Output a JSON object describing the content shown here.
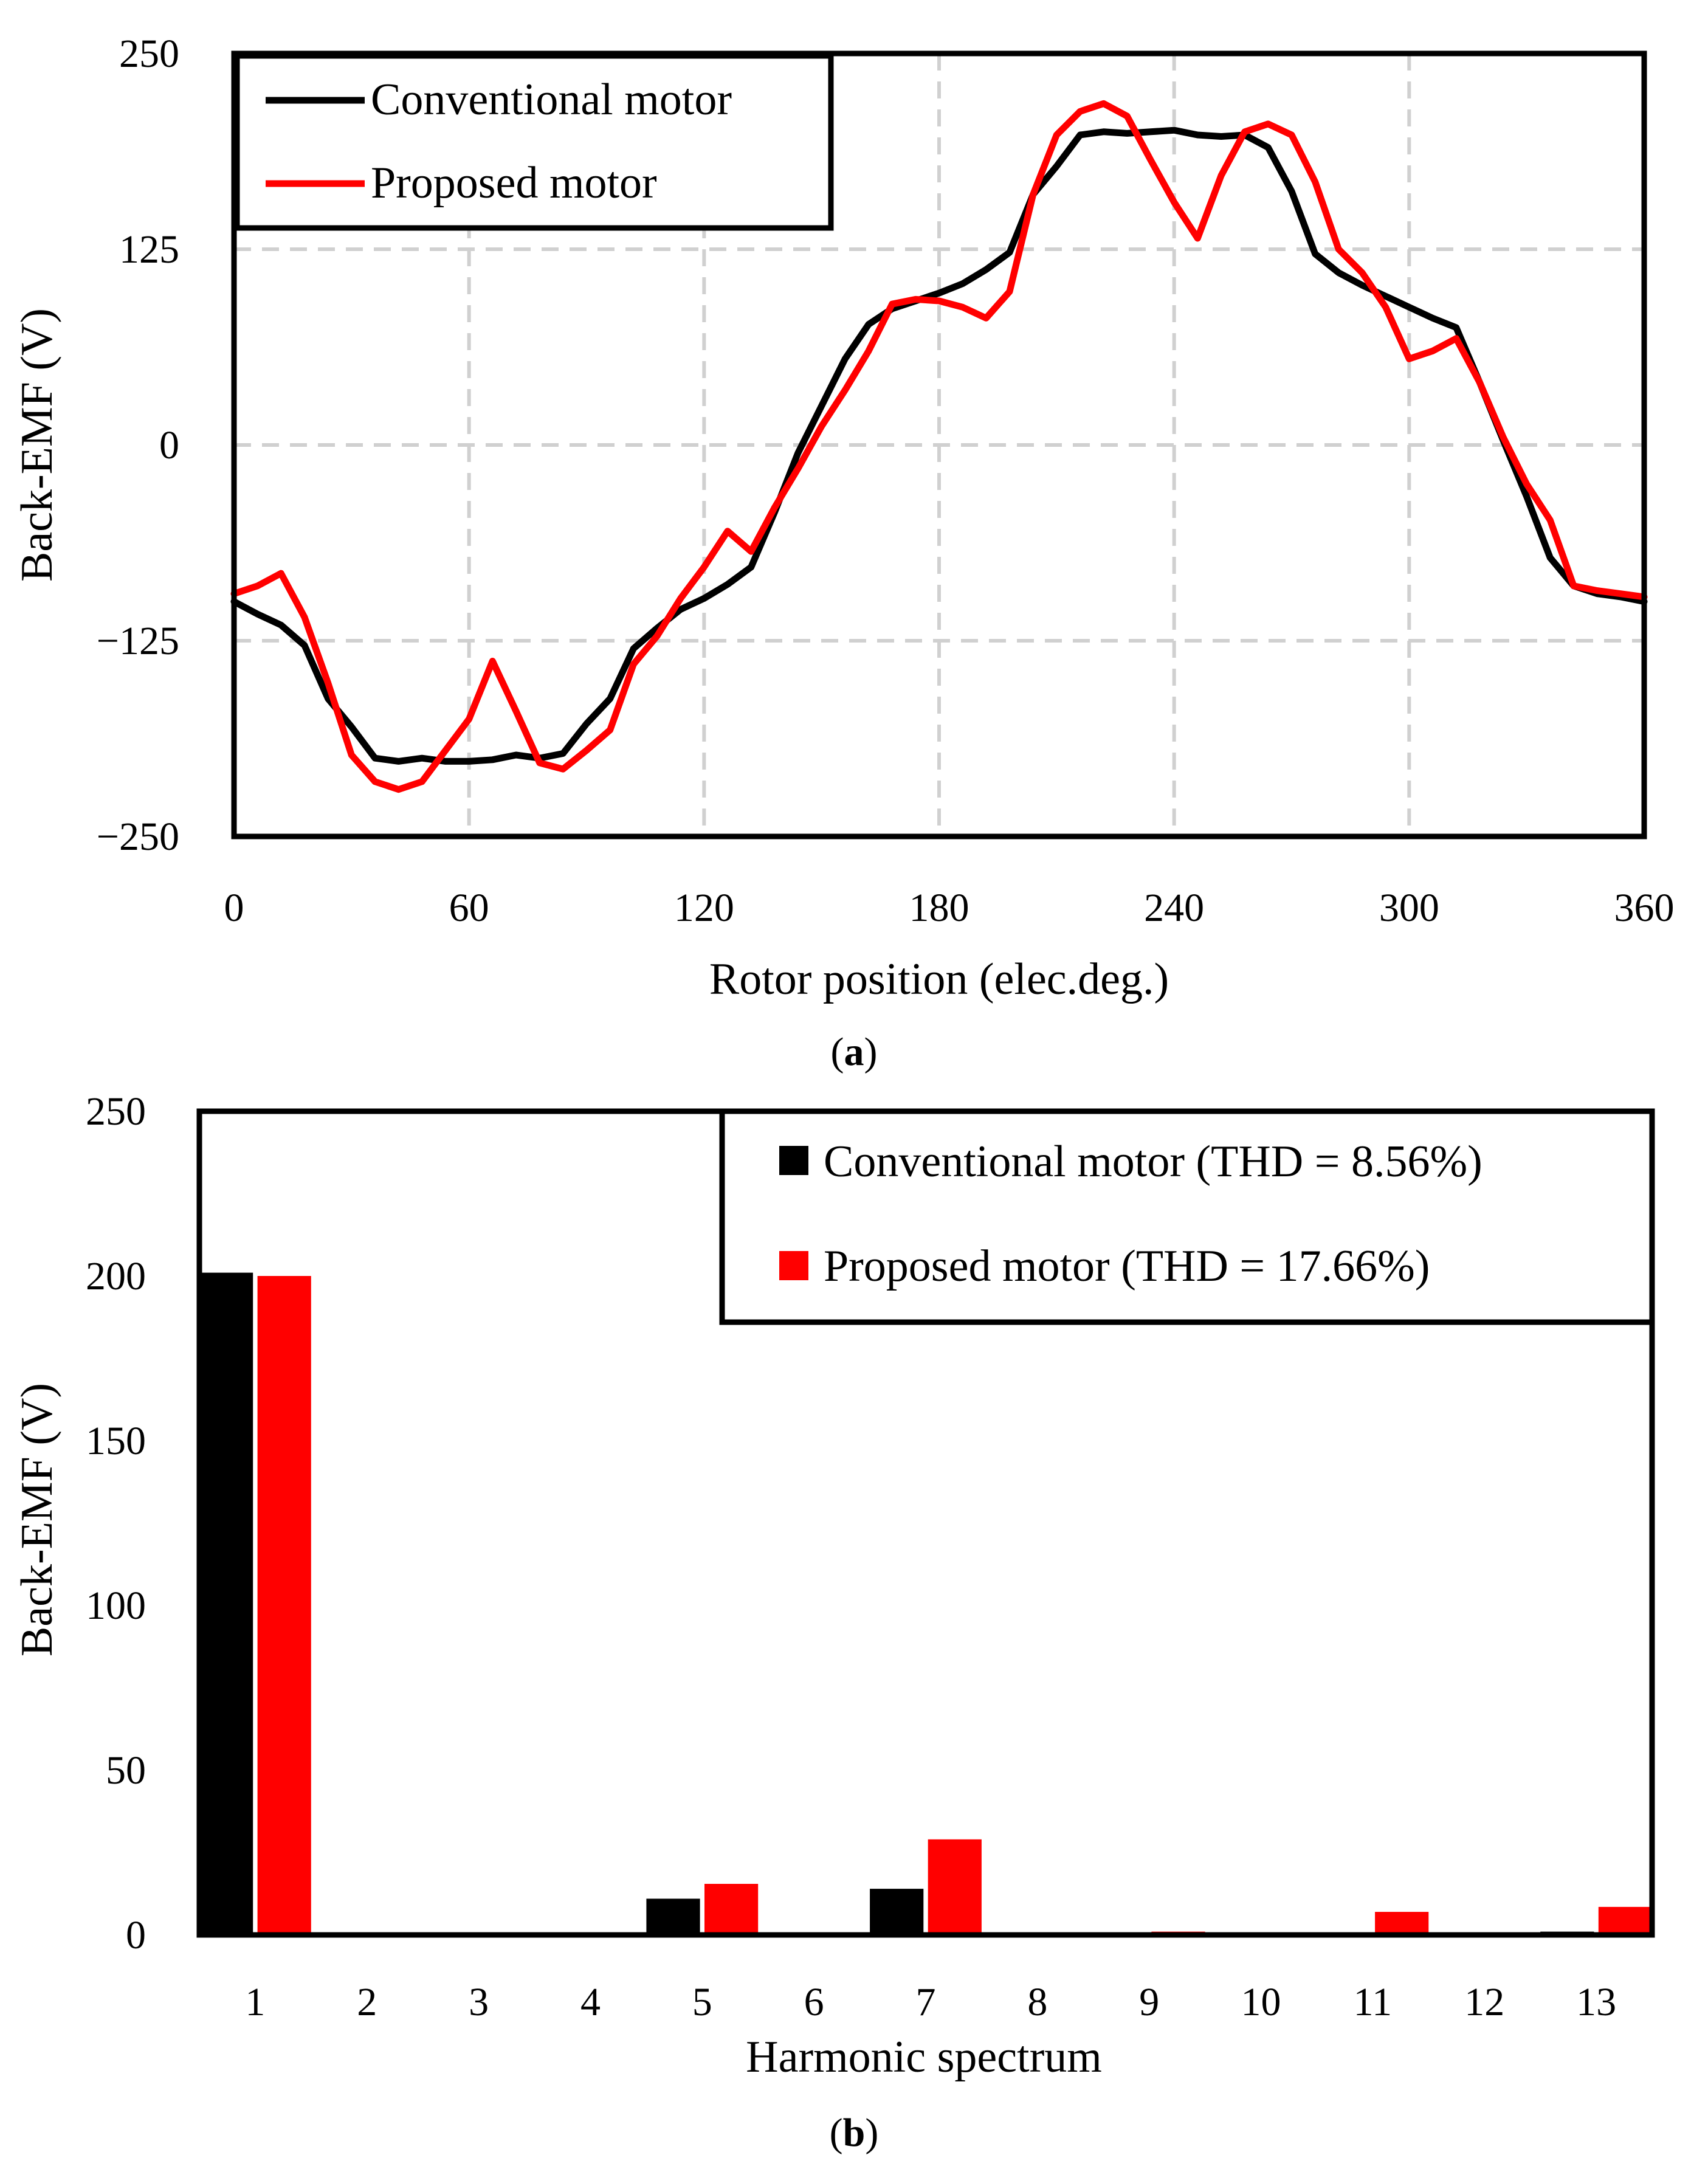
{
  "chart_data": [
    {
      "type": "line",
      "panel": "a",
      "caption_letter": "a",
      "xlabel": "Rotor position (elec.deg.)",
      "ylabel": "Back-EMF (V)",
      "xlim": [
        0,
        360
      ],
      "ylim": [
        -250,
        250
      ],
      "xticks": [
        0,
        60,
        120,
        180,
        240,
        300,
        360
      ],
      "ytick_values": [
        250,
        125,
        0,
        -125,
        -250
      ],
      "ytick_labels": [
        "250",
        "125",
        "0",
        "−125",
        "−250"
      ],
      "grid": true,
      "legend_position": "top-left",
      "series": [
        {
          "name": "Conventional motor",
          "color": "#000000",
          "x": [
            0,
            6,
            12,
            18,
            24,
            30,
            36,
            42,
            48,
            54,
            60,
            66,
            72,
            78,
            84,
            90,
            96,
            102,
            108,
            114,
            120,
            126,
            132,
            138,
            144,
            150,
            156,
            162,
            168,
            174,
            180,
            186,
            192,
            198,
            204,
            210,
            216,
            222,
            228,
            234,
            240,
            246,
            252,
            258,
            264,
            270,
            276,
            282,
            288,
            294,
            300,
            306,
            312,
            318,
            324,
            330,
            336,
            342,
            348,
            354,
            360
          ],
          "y": [
            -100,
            -108,
            -115,
            -128,
            -162,
            -180,
            -200,
            -202,
            -200,
            -202,
            -202,
            -201,
            -198,
            -200,
            -197,
            -178,
            -162,
            -130,
            -117,
            -105,
            -98,
            -89,
            -78,
            -43,
            -5,
            25,
            55,
            77,
            87,
            92,
            97,
            103,
            112,
            123,
            160,
            178,
            198,
            200,
            199,
            200,
            201,
            198,
            197,
            198,
            190,
            162,
            122,
            110,
            102,
            95,
            88,
            81,
            75,
            40,
            3,
            -33,
            -72,
            -90,
            -95,
            -97,
            -100
          ]
        },
        {
          "name": "Proposed motor",
          "color": "#ff0000",
          "x": [
            0,
            6,
            12,
            18,
            24,
            30,
            36,
            42,
            48,
            54,
            60,
            66,
            72,
            78,
            84,
            90,
            96,
            102,
            108,
            114,
            120,
            126,
            132,
            138,
            144,
            150,
            156,
            162,
            168,
            174,
            180,
            186,
            192,
            198,
            204,
            210,
            216,
            222,
            228,
            234,
            240,
            246,
            252,
            258,
            264,
            270,
            276,
            282,
            288,
            294,
            300,
            306,
            312,
            318,
            324,
            330,
            336,
            342,
            348,
            354,
            360
          ],
          "y": [
            -95,
            -90,
            -82,
            -110,
            -152,
            -198,
            -215,
            -220,
            -215,
            -195,
            -175,
            -138,
            -170,
            -203,
            -207,
            -195,
            -182,
            -140,
            -122,
            -98,
            -78,
            -55,
            -68,
            -40,
            -15,
            12,
            35,
            60,
            90,
            93,
            92,
            88,
            81,
            98,
            160,
            198,
            213,
            218,
            210,
            182,
            155,
            132,
            172,
            200,
            205,
            198,
            168,
            125,
            110,
            88,
            55,
            60,
            68,
            40,
            5,
            -25,
            -48,
            -90,
            -93,
            -95,
            -97
          ]
        }
      ]
    },
    {
      "type": "bar",
      "panel": "b",
      "caption_letter": "b",
      "xlabel": "Harmonic spectrum",
      "ylabel": "Back-EMF (V)",
      "ylim": [
        0,
        250
      ],
      "ytick_values": [
        0,
        50,
        100,
        150,
        200,
        250
      ],
      "ytick_labels": [
        "0",
        "50",
        "100",
        "150",
        "200",
        "250"
      ],
      "grid": false,
      "legend_position": "top-right",
      "categories": [
        "1",
        "2",
        "3",
        "4",
        "5",
        "6",
        "7",
        "8",
        "9",
        "10",
        "11",
        "12",
        "13"
      ],
      "series": [
        {
          "name": "Conventional motor (THD = 8.56%)",
          "color": "#000000",
          "values": [
            201,
            0,
            0,
            0,
            11,
            0,
            14,
            0,
            0,
            0,
            0,
            0,
            1
          ]
        },
        {
          "name": "Proposed motor (THD = 17.66%)",
          "color": "#ff0000",
          "values": [
            200,
            0.5,
            0.5,
            0.5,
            15.5,
            0.5,
            29,
            0.5,
            1,
            0.5,
            7,
            0.5,
            8.5
          ]
        }
      ]
    }
  ]
}
